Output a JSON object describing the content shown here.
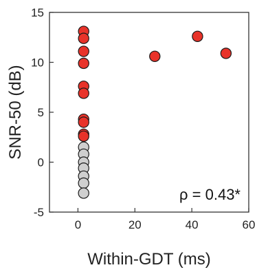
{
  "chart_data": {
    "type": "scatter",
    "title": "",
    "xlabel": "Within-GDT (ms)",
    "ylabel": "SNR-50 (dB)",
    "xlim": [
      -10,
      60
    ],
    "ylim": [
      -5,
      15
    ],
    "xticks": [
      0,
      20,
      40,
      60
    ],
    "yticks": [
      -5,
      0,
      5,
      10,
      15
    ],
    "grid": false,
    "legend": "none",
    "annotation": "ρ = 0.43*",
    "colors": {
      "red": "#e8332a",
      "gray": "#cfcfcf",
      "edge": "#1a1a1a"
    },
    "points": [
      {
        "x": 2,
        "y": 13.1,
        "group": "red"
      },
      {
        "x": 2,
        "y": 12.4,
        "group": "red"
      },
      {
        "x": 2,
        "y": 11.1,
        "group": "red"
      },
      {
        "x": 2,
        "y": 9.9,
        "group": "red"
      },
      {
        "x": 2,
        "y": 7.6,
        "group": "red"
      },
      {
        "x": 2,
        "y": 6.9,
        "group": "red"
      },
      {
        "x": 2,
        "y": 4.3,
        "group": "red"
      },
      {
        "x": 2,
        "y": 4.0,
        "group": "red"
      },
      {
        "x": 2,
        "y": 2.8,
        "group": "red"
      },
      {
        "x": 2,
        "y": 2.6,
        "group": "red"
      },
      {
        "x": 27,
        "y": 10.6,
        "group": "red"
      },
      {
        "x": 42,
        "y": 12.6,
        "group": "red"
      },
      {
        "x": 52,
        "y": 10.9,
        "group": "red"
      },
      {
        "x": 2,
        "y": 1.5,
        "group": "gray"
      },
      {
        "x": 2,
        "y": 0.8,
        "group": "gray"
      },
      {
        "x": 2,
        "y": 0.0,
        "group": "gray"
      },
      {
        "x": 2,
        "y": -0.6,
        "group": "gray"
      },
      {
        "x": 2,
        "y": -1.4,
        "group": "gray"
      },
      {
        "x": 2,
        "y": -2.1,
        "group": "gray"
      },
      {
        "x": 2,
        "y": -3.1,
        "group": "gray"
      }
    ]
  }
}
